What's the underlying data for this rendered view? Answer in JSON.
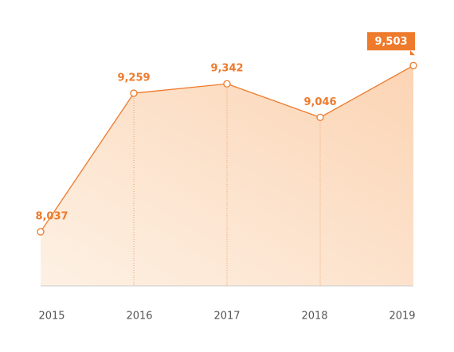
{
  "chart_data": {
    "type": "area",
    "categories": [
      "2015",
      "2016",
      "2017",
      "2018",
      "2019"
    ],
    "values": [
      8037,
      9259,
      9342,
      9046,
      9503
    ],
    "value_labels": [
      "8,037",
      "9,259",
      "9,342",
      "9,046",
      "9,503"
    ],
    "color": "#ee7a2c",
    "ylim": [
      7560,
      9800
    ]
  }
}
